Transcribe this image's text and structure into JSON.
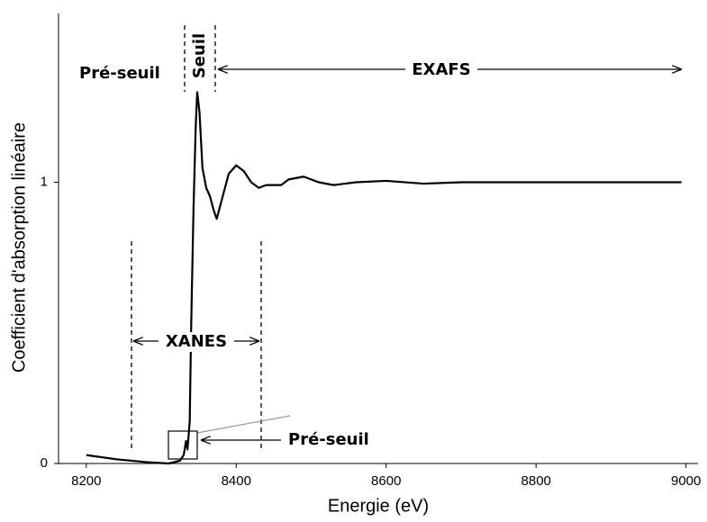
{
  "chart_data": {
    "type": "line",
    "xlabel": "Energie (eV)",
    "ylabel": "Coefficient d'absorption linéaire",
    "x": [
      8200,
      8240,
      8280,
      8310,
      8325,
      8330,
      8333,
      8335,
      8338,
      8340,
      8343,
      8346,
      8348,
      8351,
      8355,
      8360,
      8365,
      8370,
      8374,
      8380,
      8390,
      8400,
      8410,
      8420,
      8430,
      8440,
      8460,
      8470,
      8490,
      8510,
      8530,
      8560,
      8600,
      8650,
      8700,
      8994
    ],
    "values": [
      0.03,
      0.015,
      0.005,
      0,
      0.01,
      0.03,
      0.08,
      0.05,
      0.15,
      0.5,
      0.9,
      1.2,
      1.32,
      1.25,
      1.05,
      0.98,
      0.95,
      0.9,
      0.87,
      0.93,
      1.03,
      1.06,
      1.04,
      1.0,
      0.98,
      0.99,
      0.99,
      1.01,
      1.02,
      1.0,
      0.99,
      1.0,
      1.005,
      0.995,
      1.0,
      1.0
    ],
    "color": "#000000",
    "xlim": [
      8163,
      9016
    ],
    "ylim": [
      0,
      1.6
    ],
    "xticks": [
      8200,
      8400,
      8600,
      8800,
      9000
    ],
    "yticks": [
      0,
      1
    ],
    "annotations": [
      "Pré-seuil",
      "Seuil",
      "EXAFS",
      "XANES",
      "Pré-seuil"
    ]
  }
}
